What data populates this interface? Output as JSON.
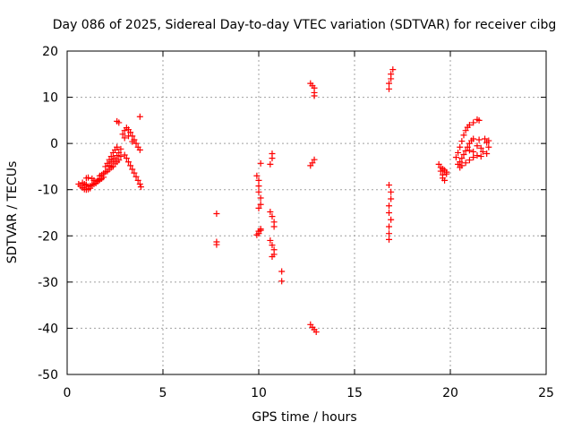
{
  "chart_data": {
    "type": "scatter",
    "title": "Day 086 of 2025, Sidereal Day-to-day VTEC variation (SDTVAR) for receiver cibg",
    "xlabel": "GPS time / hours",
    "ylabel": "SDTVAR / TECUs",
    "xlim": [
      0,
      25
    ],
    "ylim": [
      -50,
      20
    ],
    "xticks": [
      0,
      5,
      10,
      15,
      20,
      25
    ],
    "yticks": [
      -50,
      -40,
      -30,
      -20,
      -10,
      0,
      10,
      20
    ],
    "xtick_labels": [
      "0",
      "5",
      "10",
      "15",
      "20",
      "25"
    ],
    "ytick_labels": [
      "-50",
      "-40",
      "-30",
      "-20",
      "-10",
      "0",
      "10",
      "20"
    ],
    "grid": true,
    "marker": "+",
    "color": "#ff0000",
    "series": [
      {
        "name": "SDTVAR",
        "points": [
          [
            0.6,
            -8.8
          ],
          [
            0.7,
            -9.2
          ],
          [
            0.8,
            -9.6
          ],
          [
            0.9,
            -9.9
          ],
          [
            1.0,
            -10.0
          ],
          [
            1.1,
            -9.9
          ],
          [
            1.2,
            -9.7
          ],
          [
            0.8,
            -8.5
          ],
          [
            0.9,
            -8.8
          ],
          [
            1.0,
            -9.0
          ],
          [
            1.1,
            -9.3
          ],
          [
            1.2,
            -9.2
          ],
          [
            1.0,
            -7.5
          ],
          [
            1.1,
            -7.4
          ],
          [
            1.3,
            -7.6
          ],
          [
            1.4,
            -8.0
          ],
          [
            1.5,
            -8.3
          ],
          [
            1.6,
            -8.0
          ],
          [
            1.7,
            -7.7
          ],
          [
            1.3,
            -9.0
          ],
          [
            1.4,
            -8.8
          ],
          [
            1.5,
            -8.6
          ],
          [
            1.6,
            -8.2
          ],
          [
            1.7,
            -7.9
          ],
          [
            1.8,
            -7.6
          ],
          [
            1.9,
            -7.3
          ],
          [
            1.7,
            -7.0
          ],
          [
            1.8,
            -6.8
          ],
          [
            1.9,
            -6.5
          ],
          [
            2.0,
            -6.2
          ],
          [
            2.1,
            -6.0
          ],
          [
            2.2,
            -5.6
          ],
          [
            2.3,
            -5.2
          ],
          [
            2.0,
            -5.0
          ],
          [
            2.1,
            -4.3
          ],
          [
            2.2,
            -3.5
          ],
          [
            2.3,
            -2.8
          ],
          [
            2.4,
            -2.0
          ],
          [
            2.5,
            -1.4
          ],
          [
            2.6,
            -0.8
          ],
          [
            2.2,
            -4.8
          ],
          [
            2.3,
            -4.0
          ],
          [
            2.4,
            -3.6
          ],
          [
            2.5,
            -3.2
          ],
          [
            2.6,
            -2.6
          ],
          [
            2.7,
            -2.0
          ],
          [
            2.8,
            -1.2
          ],
          [
            2.4,
            -5.0
          ],
          [
            2.5,
            -4.4
          ],
          [
            2.6,
            -4.0
          ],
          [
            2.7,
            -3.6
          ],
          [
            2.8,
            -2.8
          ],
          [
            2.6,
            4.8
          ],
          [
            2.7,
            4.5
          ],
          [
            2.9,
            2.0
          ],
          [
            3.0,
            2.8
          ],
          [
            3.1,
            3.4
          ],
          [
            3.2,
            3.0
          ],
          [
            3.3,
            2.4
          ],
          [
            3.4,
            1.6
          ],
          [
            3.5,
            0.8
          ],
          [
            3.6,
            0.0
          ],
          [
            3.7,
            -0.8
          ],
          [
            3.8,
            -1.4
          ],
          [
            3.0,
            1.2
          ],
          [
            3.2,
            1.6
          ],
          [
            3.4,
            0.4
          ],
          [
            3.0,
            -2.5
          ],
          [
            3.1,
            -3.2
          ],
          [
            3.2,
            -4.0
          ],
          [
            3.3,
            -4.8
          ],
          [
            3.4,
            -5.6
          ],
          [
            3.5,
            -6.4
          ],
          [
            3.6,
            -7.2
          ],
          [
            3.7,
            -8.0
          ],
          [
            3.8,
            -8.8
          ],
          [
            3.85,
            -9.4
          ],
          [
            3.8,
            5.8
          ],
          [
            7.8,
            -15.2
          ],
          [
            7.8,
            -21.3
          ],
          [
            7.8,
            -21.9
          ],
          [
            9.9,
            -7.0
          ],
          [
            10.0,
            -8.0
          ],
          [
            10.0,
            -9.2
          ],
          [
            10.0,
            -10.5
          ],
          [
            10.1,
            -11.8
          ],
          [
            10.1,
            -13.2
          ],
          [
            10.0,
            -14.0
          ],
          [
            10.1,
            -18.5
          ],
          [
            10.0,
            -19.5
          ],
          [
            9.9,
            -19.8
          ],
          [
            10.1,
            -18.8
          ],
          [
            10.0,
            -19.0
          ],
          [
            10.1,
            -4.3
          ],
          [
            10.6,
            -4.5
          ],
          [
            10.7,
            -3.2
          ],
          [
            10.7,
            -2.2
          ],
          [
            10.6,
            -14.8
          ],
          [
            10.7,
            -15.8
          ],
          [
            10.8,
            -17.0
          ],
          [
            10.8,
            -18.0
          ],
          [
            10.6,
            -21.0
          ],
          [
            10.7,
            -22.0
          ],
          [
            10.8,
            -23.0
          ],
          [
            10.8,
            -24.0
          ],
          [
            10.7,
            -24.5
          ],
          [
            11.2,
            -27.7
          ],
          [
            11.2,
            -29.8
          ],
          [
            12.7,
            13.0
          ],
          [
            12.8,
            12.5
          ],
          [
            12.9,
            12.0
          ],
          [
            12.9,
            11.0
          ],
          [
            12.9,
            10.3
          ],
          [
            12.7,
            -4.8
          ],
          [
            12.8,
            -4.2
          ],
          [
            12.9,
            -3.5
          ],
          [
            12.7,
            -39.2
          ],
          [
            12.8,
            -39.8
          ],
          [
            12.9,
            -40.3
          ],
          [
            13.0,
            -40.8
          ],
          [
            16.8,
            11.8
          ],
          [
            16.8,
            13.0
          ],
          [
            16.9,
            14.0
          ],
          [
            16.9,
            15.0
          ],
          [
            17.0,
            16.0
          ],
          [
            16.8,
            -9.0
          ],
          [
            16.9,
            -10.5
          ],
          [
            16.9,
            -12.0
          ],
          [
            16.8,
            -13.5
          ],
          [
            16.8,
            -15.0
          ],
          [
            16.9,
            -16.5
          ],
          [
            16.8,
            -18.0
          ],
          [
            16.8,
            -19.5
          ],
          [
            16.8,
            -20.8
          ],
          [
            19.4,
            -4.5
          ],
          [
            19.5,
            -5.2
          ],
          [
            19.5,
            -6.0
          ],
          [
            19.6,
            -6.8
          ],
          [
            19.6,
            -7.5
          ],
          [
            19.7,
            -8.0
          ],
          [
            19.6,
            -5.5
          ],
          [
            19.7,
            -5.8
          ],
          [
            19.8,
            -6.2
          ],
          [
            19.8,
            -6.6
          ],
          [
            20.3,
            -3.0
          ],
          [
            20.4,
            -2.0
          ],
          [
            20.5,
            -0.8
          ],
          [
            20.6,
            0.5
          ],
          [
            20.7,
            1.8
          ],
          [
            20.8,
            2.8
          ],
          [
            20.9,
            3.5
          ],
          [
            21.0,
            4.0
          ],
          [
            21.2,
            4.5
          ],
          [
            21.4,
            5.2
          ],
          [
            21.5,
            5.0
          ],
          [
            20.4,
            -4.5
          ],
          [
            20.5,
            -4.0
          ],
          [
            20.6,
            -3.2
          ],
          [
            20.7,
            -2.4
          ],
          [
            20.8,
            -1.6
          ],
          [
            20.9,
            -0.8
          ],
          [
            21.0,
            0.0
          ],
          [
            21.1,
            0.6
          ],
          [
            21.2,
            1.0
          ],
          [
            20.5,
            -5.2
          ],
          [
            20.6,
            -4.8
          ],
          [
            20.8,
            -4.2
          ],
          [
            21.0,
            -3.6
          ],
          [
            21.2,
            -3.0
          ],
          [
            21.4,
            -2.6
          ],
          [
            21.0,
            -1.5
          ],
          [
            21.2,
            -1.8
          ],
          [
            21.4,
            -0.5
          ],
          [
            21.5,
            0.8
          ],
          [
            21.6,
            -1.0
          ],
          [
            21.7,
            -1.8
          ],
          [
            21.8,
            1.0
          ],
          [
            21.9,
            0.2
          ],
          [
            22.0,
            -0.8
          ],
          [
            22.0,
            0.6
          ],
          [
            21.9,
            -2.2
          ],
          [
            21.6,
            -2.8
          ]
        ]
      }
    ]
  }
}
